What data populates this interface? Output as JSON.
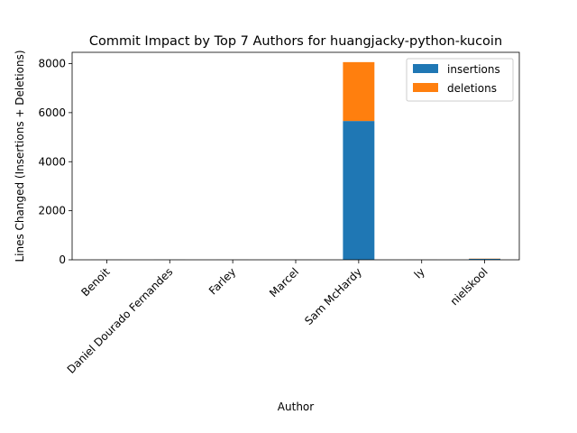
{
  "chart_data": {
    "type": "bar",
    "stacked": true,
    "title": "Commit Impact by Top 7 Authors for huangjacky-python-kucoin",
    "xlabel": "Author",
    "ylabel": "Lines Changed (Insertions + Deletions)",
    "categories": [
      "Benoit",
      "Daniel Dourado Fernandes",
      "Farley",
      "Marcel",
      "Sam McHardy",
      "ly",
      "nielskool"
    ],
    "series": [
      {
        "name": "insertions",
        "color": "#1f77b4",
        "values": [
          2,
          4,
          2,
          2,
          5660,
          2,
          40
        ]
      },
      {
        "name": "deletions",
        "color": "#ff7f0e",
        "values": [
          1,
          2,
          1,
          1,
          2400,
          1,
          10
        ]
      }
    ],
    "ylim": [
      0,
      8460
    ],
    "yticks": [
      0,
      2000,
      4000,
      6000,
      8000
    ],
    "legend": "top-right",
    "grid": false
  }
}
